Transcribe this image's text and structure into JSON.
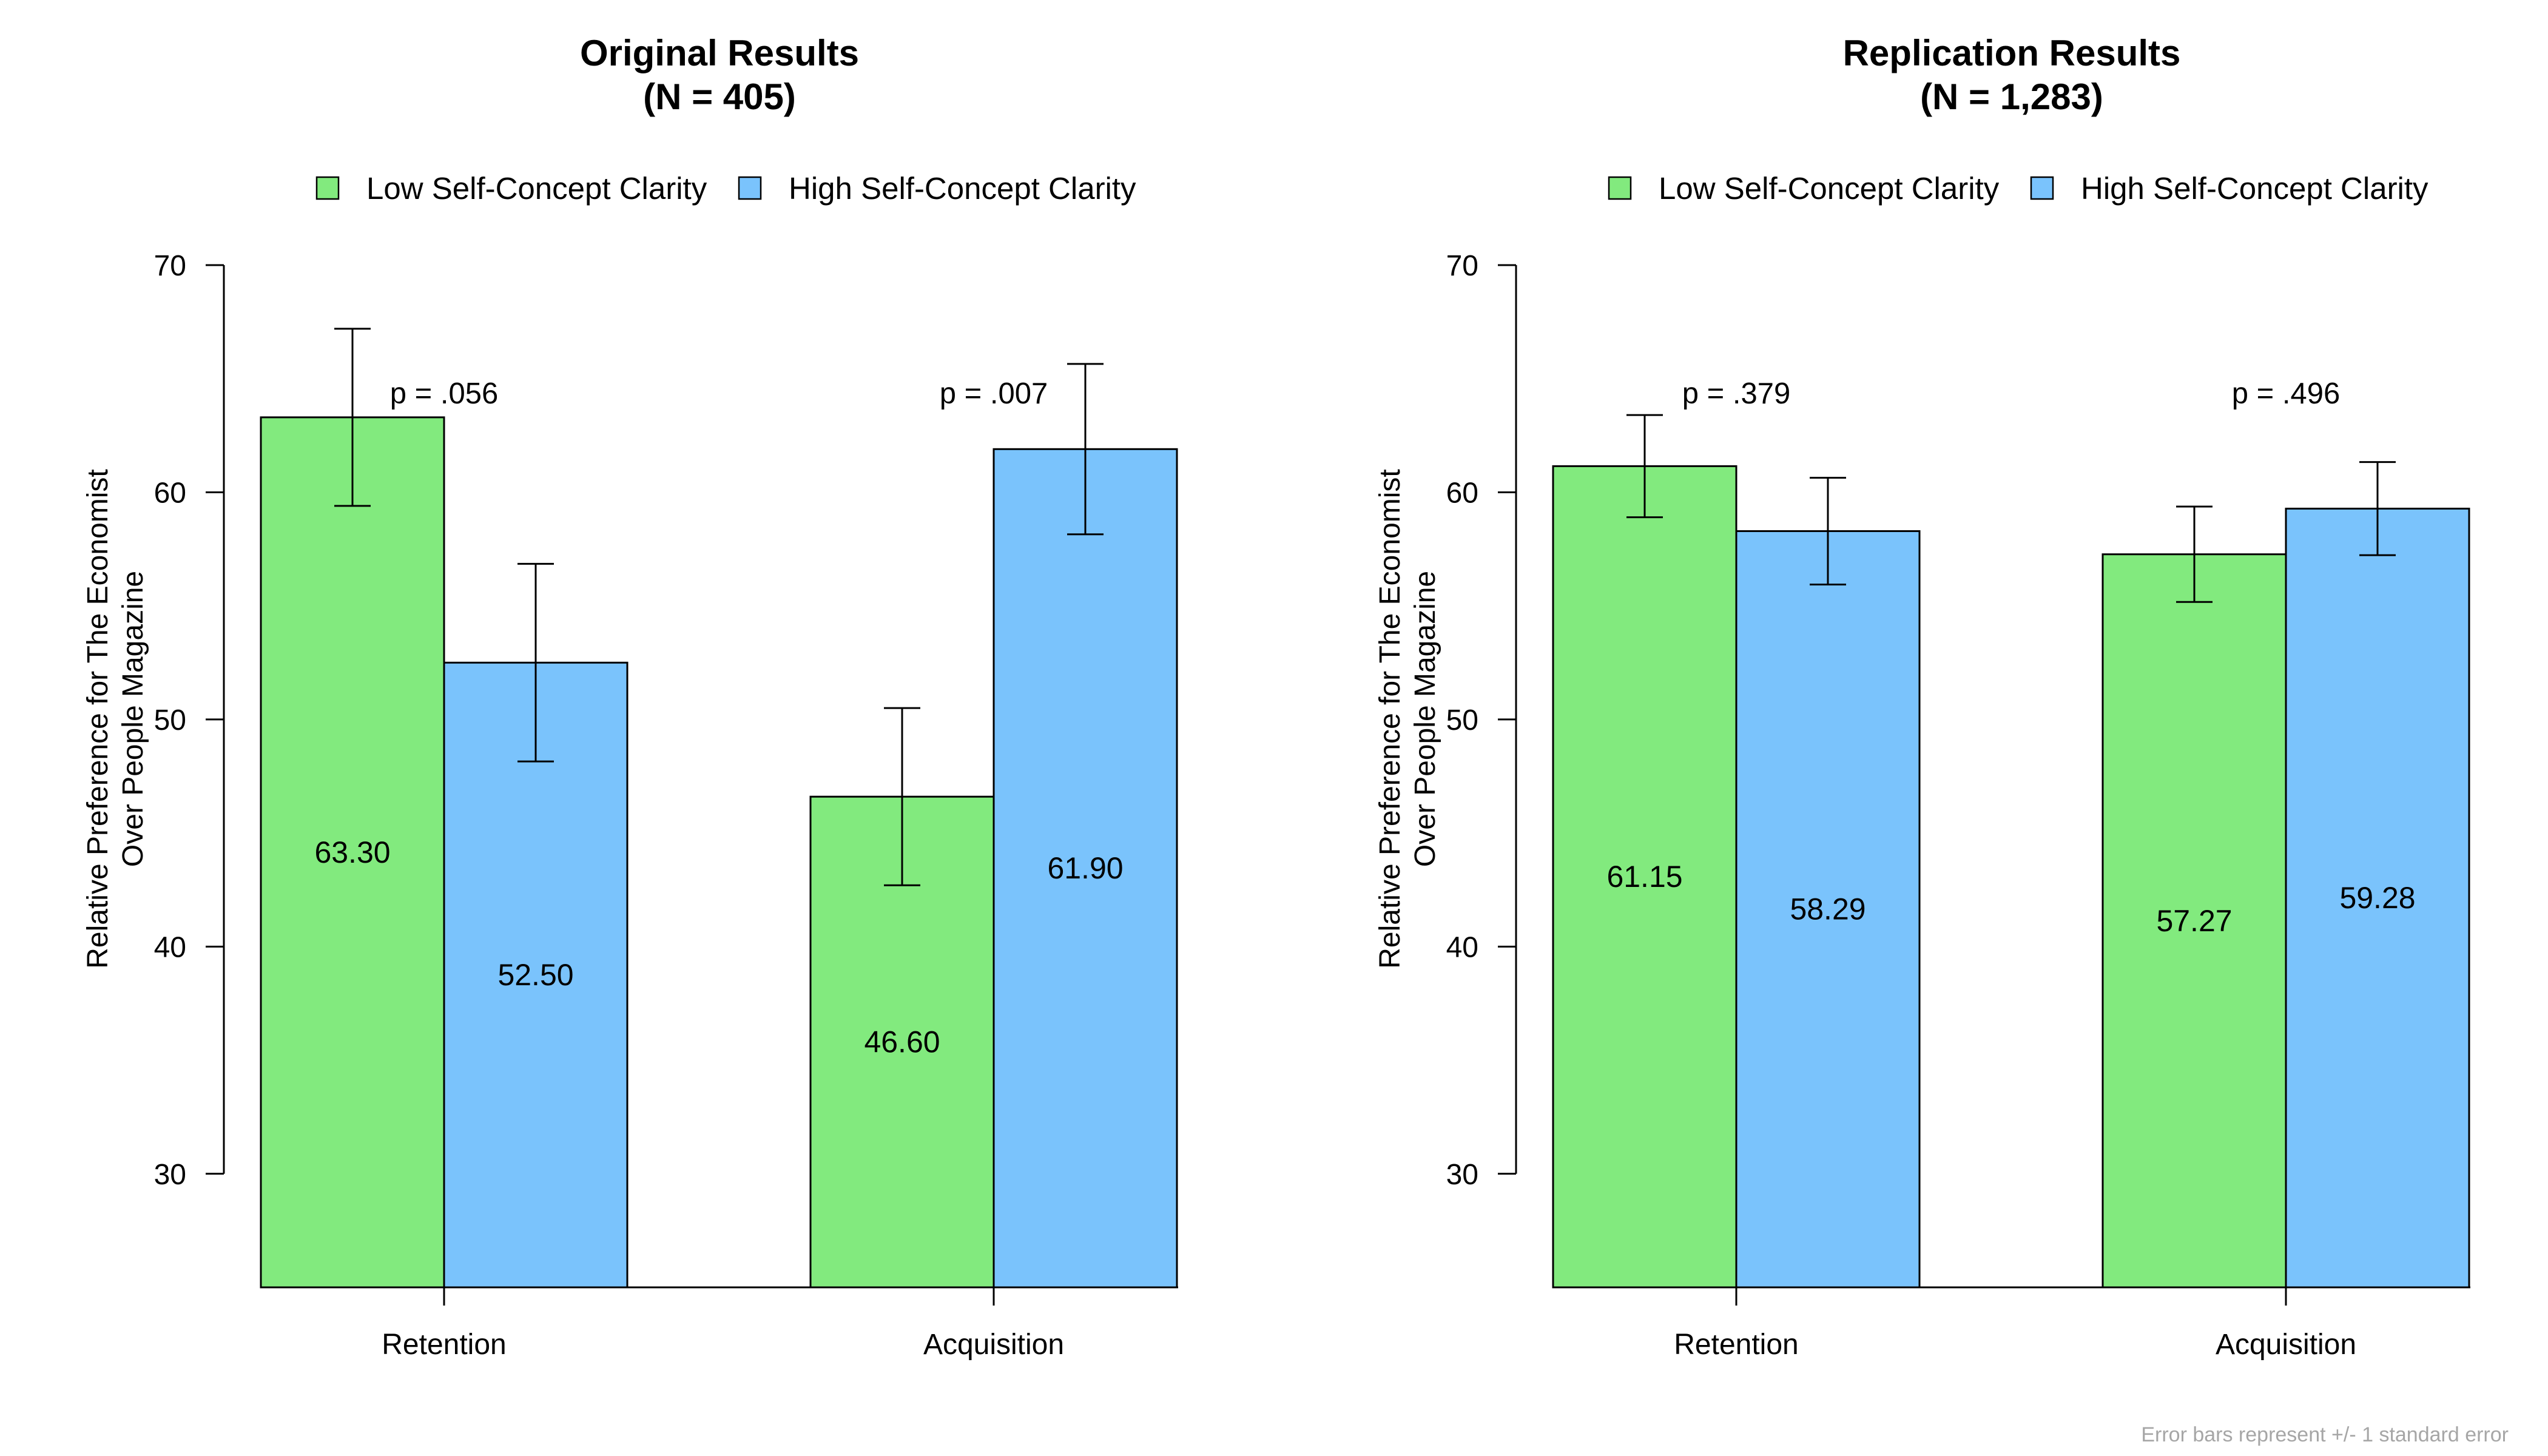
{
  "footnote": "Error bars represent +/- 1 standard error",
  "chart_data": [
    {
      "type": "bar",
      "title": "Original Results",
      "subtitle": "(N = 405)",
      "ylabel_line1": "Relative Preference for The Economist",
      "ylabel_line2": "Over People Magazine",
      "ylim": [
        25,
        70
      ],
      "yticks": [
        30,
        40,
        50,
        60,
        70
      ],
      "categories": [
        "Retention",
        "Acquisition"
      ],
      "legend": {
        "placement": "top"
      },
      "series": [
        {
          "name": "Low Self-Concept Clarity",
          "color": "#82ea7e",
          "values": [
            63.3,
            46.6
          ],
          "labels": [
            "63.30",
            "46.60"
          ],
          "se": [
            3.9,
            3.9
          ]
        },
        {
          "name": "High Self-Concept Clarity",
          "color": "#7ac3fc",
          "values": [
            52.5,
            61.9
          ],
          "labels": [
            "52.50",
            "61.90"
          ],
          "se": [
            4.35,
            3.75
          ]
        }
      ],
      "pvalues": [
        "p = .056",
        "p = .007"
      ]
    },
    {
      "type": "bar",
      "title": "Replication Results",
      "subtitle": "(N = 1,283)",
      "ylabel_line1": "Relative Preference for The Economist",
      "ylabel_line2": "Over People Magazine",
      "ylim": [
        25,
        70
      ],
      "yticks": [
        30,
        40,
        50,
        60,
        70
      ],
      "categories": [
        "Retention",
        "Acquisition"
      ],
      "legend": {
        "placement": "top"
      },
      "series": [
        {
          "name": "Low Self-Concept Clarity",
          "color": "#82ea7e",
          "values": [
            61.15,
            57.27
          ],
          "labels": [
            "61.15",
            "57.27"
          ],
          "se": [
            2.25,
            2.1
          ]
        },
        {
          "name": "High Self-Concept Clarity",
          "color": "#7ac3fc",
          "values": [
            58.29,
            59.28
          ],
          "labels": [
            "58.29",
            "59.28"
          ],
          "se": [
            2.35,
            2.05
          ]
        }
      ],
      "pvalues": [
        "p = .379",
        "p = .496"
      ]
    }
  ]
}
